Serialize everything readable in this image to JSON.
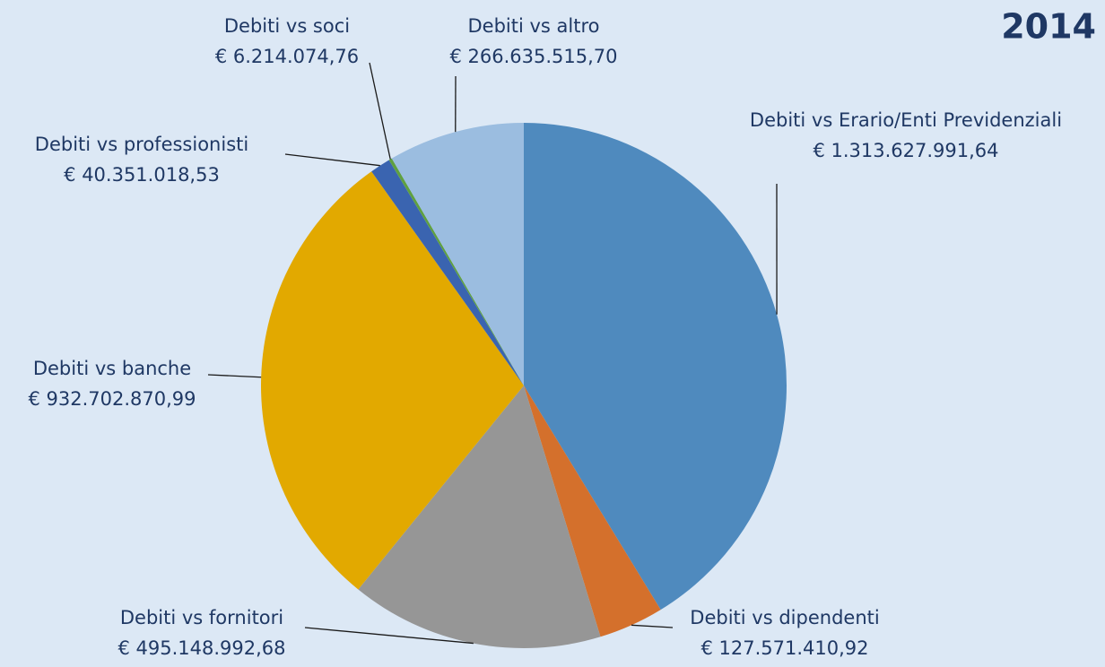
{
  "chart_data": {
    "type": "pie",
    "title": "2014",
    "categories": [
      "Debiti vs Erario/Enti Previdenziali",
      "Debiti vs dipendenti",
      "Debiti vs fornitori",
      "Debiti vs banche",
      "Debiti vs professionisti",
      "Debiti vs soci",
      "Debiti vs altro"
    ],
    "values": [
      1313627991.64,
      127571410.92,
      495148992.68,
      932702870.99,
      40351018.53,
      6214074.76,
      266635515.7
    ],
    "value_labels": [
      "€ 1.313.627.991,64",
      "€ 127.571.410,92",
      "€ 495.148.992,68",
      "€ 932.702.870,99",
      "€ 40.351.018,53",
      "€ 6.214.074,76",
      "€ 266.635.515,70"
    ],
    "colors": [
      "#4f8abe",
      "#d4702c",
      "#969696",
      "#e2a900",
      "#3a64b0",
      "#5fa040",
      "#9bbde0"
    ]
  }
}
